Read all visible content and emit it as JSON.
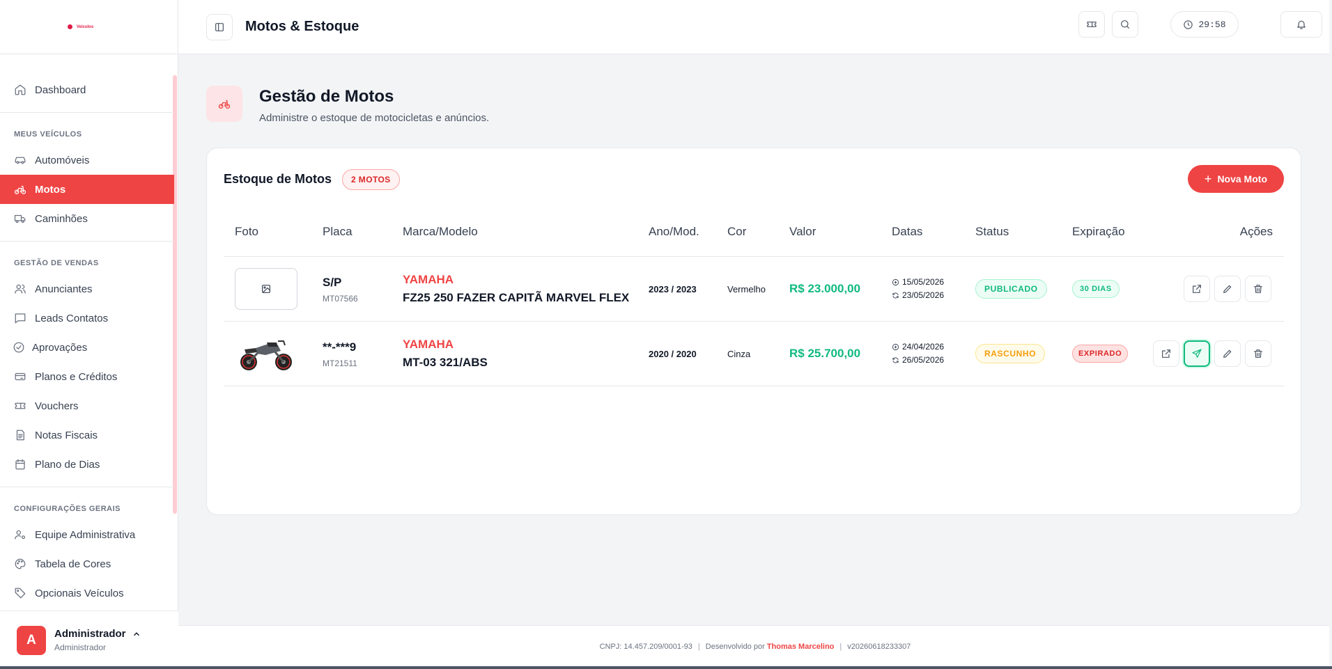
{
  "brand": {
    "logo_text": "Veículos",
    "color": "#e11d48"
  },
  "sidebar": {
    "dashboard": {
      "label": "Dashboard",
      "icon": "home-icon"
    },
    "sections": [
      {
        "title": "MEUS VEÍCULOS",
        "items": [
          {
            "label": "Automóveis",
            "icon": "car-icon",
            "active": false
          },
          {
            "label": "Motos",
            "icon": "bike-icon",
            "active": true
          },
          {
            "label": "Caminhões",
            "icon": "truck-icon",
            "active": false
          }
        ]
      },
      {
        "title": "GESTÃO DE VENDAS",
        "items": [
          {
            "label": "Anunciantes",
            "icon": "users-icon"
          },
          {
            "label": "Leads Contatos",
            "icon": "message-icon"
          },
          {
            "label": "Aprovações",
            "icon": "check-circle-icon"
          },
          {
            "label": "Planos e Créditos",
            "icon": "credit-card-icon"
          },
          {
            "label": "Vouchers",
            "icon": "ticket-icon"
          },
          {
            "label": "Notas Fiscais",
            "icon": "receipt-icon"
          },
          {
            "label": "Plano de Dias",
            "icon": "calendar-icon"
          }
        ]
      },
      {
        "title": "CONFIGURAÇÕES GERAIS",
        "items": [
          {
            "label": "Equipe Administrativa",
            "icon": "user-cog-icon"
          },
          {
            "label": "Tabela de Cores",
            "icon": "palette-icon"
          },
          {
            "label": "Opcionais Veículos",
            "icon": "tag-icon"
          }
        ]
      }
    ],
    "user": {
      "initial": "A",
      "name": "Administrador",
      "role": "Administrador"
    }
  },
  "header": {
    "title": "Motos & Estoque",
    "timer": "29:58"
  },
  "page": {
    "title": "Gestão de Motos",
    "subtitle": "Administre o estoque de motocicletas e anúncios."
  },
  "card": {
    "title": "Estoque de Motos",
    "count_badge": "2 MOTOS",
    "new_button": "Nova Moto",
    "columns": [
      "Foto",
      "Placa",
      "Marca/Modelo",
      "Ano/Mod.",
      "Cor",
      "Valor",
      "Datas",
      "Status",
      "Expiração",
      "Ações"
    ],
    "rows": [
      {
        "plate": "S/P",
        "code": "MT07566",
        "brand": "YAMAHA",
        "model": "FZ25 250 FAZER CAPITÃ MARVEL FLEX",
        "year": "2023 / 2023",
        "color": "Vermelho",
        "value": "R$ 23.000,00",
        "date_created": "15/05/2026",
        "date_updated": "23/05/2026",
        "status": "PUBLICADO",
        "expiration": "30 DIAS"
      },
      {
        "plate": "**‑***9",
        "code": "MT21511",
        "brand": "YAMAHA",
        "model": "MT-03 321/ABS",
        "year": "2020 / 2020",
        "color": "Cinza",
        "value": "R$ 25.700,00",
        "date_created": "24/04/2026",
        "date_updated": "26/05/2026",
        "status": "RASCUNHO",
        "expiration": "EXPIRADO"
      }
    ]
  },
  "footer": {
    "cnpj": "CNPJ: 14.457.209/0001-93",
    "dev_prefix": "Desenvolvido por",
    "dev_name": "Thomas Marcelino",
    "version": "v20260618233307"
  }
}
